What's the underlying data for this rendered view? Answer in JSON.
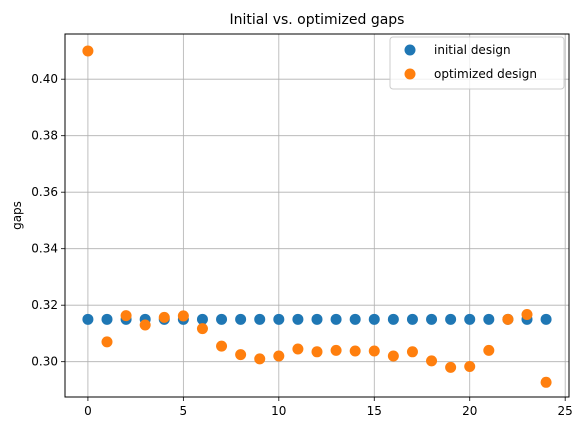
{
  "chart_data": {
    "type": "scatter",
    "title": "Initial vs. optimized gaps",
    "xlabel": "",
    "ylabel": "gaps",
    "xlim": [
      -1.2,
      25.2
    ],
    "ylim": [
      0.2875,
      0.416
    ],
    "xticks": [
      0,
      5,
      10,
      15,
      20,
      25
    ],
    "xtick_labels": [
      "0",
      "5",
      "10",
      "15",
      "20",
      "25"
    ],
    "yticks": [
      0.3,
      0.32,
      0.34,
      0.36,
      0.38,
      0.4
    ],
    "ytick_labels": [
      "0.30",
      "0.32",
      "0.34",
      "0.36",
      "0.38",
      "0.40"
    ],
    "grid": true,
    "legend_position": "top-right",
    "series": [
      {
        "name": "initial design",
        "color": "#1f77b4",
        "x": [
          0,
          1,
          2,
          3,
          4,
          5,
          6,
          7,
          8,
          9,
          10,
          11,
          12,
          13,
          14,
          15,
          16,
          17,
          18,
          19,
          20,
          21,
          22,
          23,
          24
        ],
        "values": [
          0.315,
          0.315,
          0.315,
          0.315,
          0.315,
          0.315,
          0.315,
          0.315,
          0.315,
          0.315,
          0.315,
          0.315,
          0.315,
          0.315,
          0.315,
          0.315,
          0.315,
          0.315,
          0.315,
          0.315,
          0.315,
          0.315,
          0.315,
          0.315,
          0.315
        ]
      },
      {
        "name": "optimized design",
        "color": "#ff7f0e",
        "x": [
          0,
          1,
          2,
          3,
          4,
          5,
          6,
          7,
          8,
          9,
          10,
          11,
          12,
          13,
          14,
          15,
          16,
          17,
          18,
          19,
          20,
          21,
          22,
          23,
          24
        ],
        "values": [
          0.41,
          0.307,
          0.3163,
          0.313,
          0.3157,
          0.3162,
          0.3117,
          0.3055,
          0.3025,
          0.301,
          0.302,
          0.3045,
          0.3035,
          0.304,
          0.3038,
          0.3038,
          0.302,
          0.3035,
          0.3003,
          0.298,
          0.2983,
          0.304,
          0.315,
          0.3167,
          0.2927
        ]
      }
    ]
  }
}
